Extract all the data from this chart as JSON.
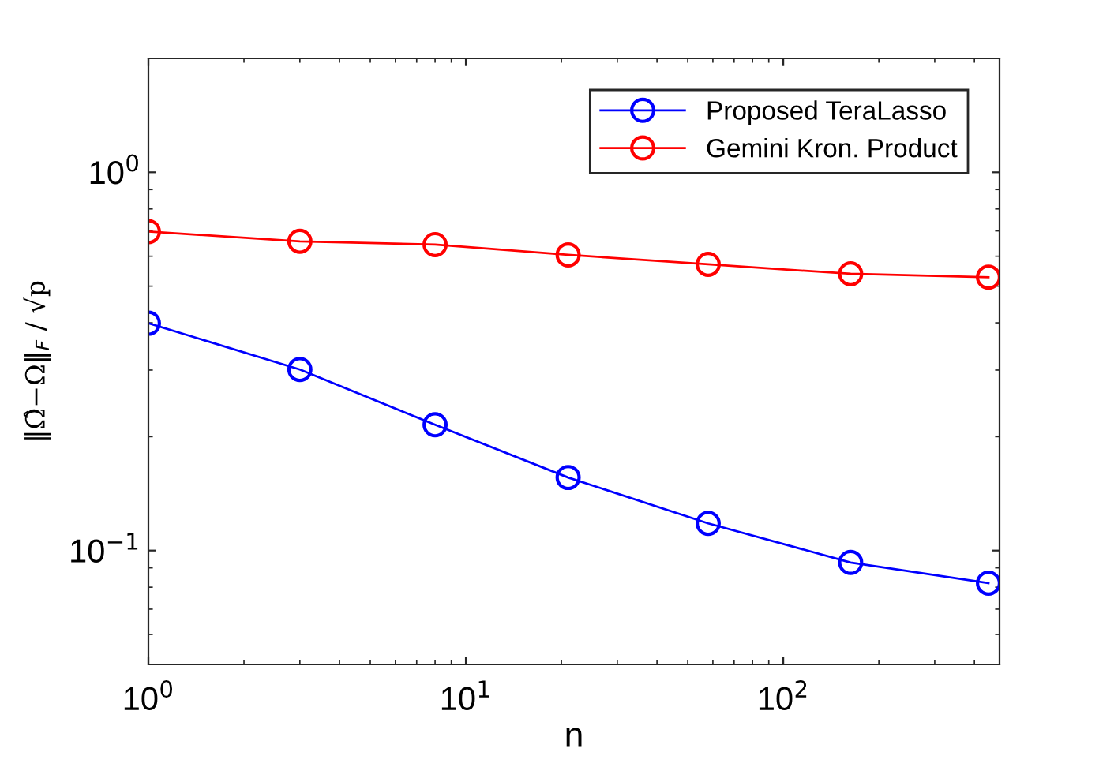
{
  "chart_data": {
    "type": "line",
    "xlabel": "n",
    "ylabel": "‖Ω̂−Ω‖$_{F}$ / √p",
    "x": [
      1,
      3,
      8,
      21,
      58,
      163,
      443
    ],
    "series": [
      {
        "name": "Proposed TeraLasso",
        "color": "#0000ff",
        "values": [
          0.399,
          0.301,
          0.215,
          0.156,
          0.118,
          0.093,
          0.082
        ]
      },
      {
        "name": "Gemini Kron. Product",
        "color": "#ff0000",
        "values": [
          0.697,
          0.657,
          0.644,
          0.605,
          0.571,
          0.539,
          0.528
        ]
      }
    ],
    "log": "xy",
    "xlim": [
      1,
      480
    ],
    "ylim": [
      0.05,
      2
    ],
    "xticks": [
      {
        "value": 1,
        "label": "10$^{0}$"
      },
      {
        "value": 10,
        "label": "10$^{1}$"
      },
      {
        "value": 100,
        "label": "10$^{2}$"
      }
    ],
    "yticks": [
      {
        "value": 0.1,
        "label": "10$^{−1}$"
      },
      {
        "value": 1,
        "label": "10$^{0}$"
      }
    ],
    "grid": false,
    "legend": "top right",
    "marker": "circle",
    "line_style": "solid"
  }
}
